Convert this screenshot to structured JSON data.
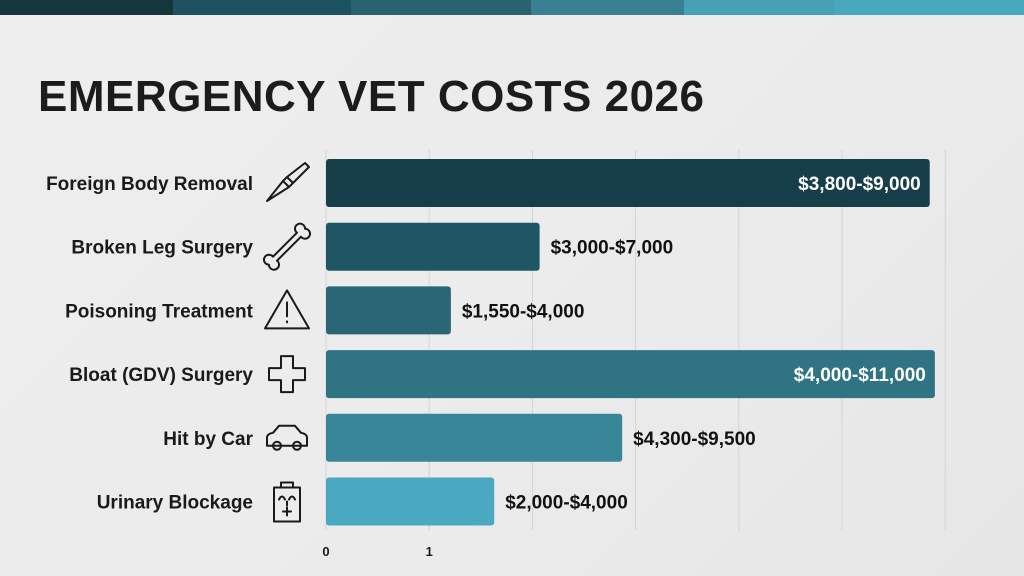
{
  "header_strip_colors": [
    "#14363d",
    "#1d5360",
    "#28636f",
    "#3a8093",
    "#48a0b7",
    "#4aa7c0"
  ],
  "chart_data": {
    "type": "bar",
    "orientation": "horizontal",
    "title": "EMERGENCY VET COSTS 2026",
    "xlabel": "",
    "ylabel": "",
    "xlim": [
      0,
      6
    ],
    "x_tick_labels": [
      "0",
      "1"
    ],
    "grid": "vertical",
    "categories": [
      "Foreign Body Removal",
      "Broken Leg Surgery",
      "Poisoning Treatment",
      "Bloat (GDV) Surgery",
      "Hit by Car",
      "Urinary Blockage"
    ],
    "icons": [
      "scalpel-icon",
      "bone-icon",
      "warning-icon",
      "medical-cross-icon",
      "car-icon",
      "clipboard-icon"
    ],
    "values": [
      5.85,
      2.07,
      1.21,
      5.9,
      2.87,
      1.63
    ],
    "data_labels": [
      "$3,800-$9,000",
      "$3,000-$7,000",
      "$1,550-$4,000",
      "$4,000-$11,000",
      "$4,300-$9,500",
      "$2,000-$4,000"
    ],
    "label_inside": [
      true,
      false,
      false,
      true,
      false,
      false
    ],
    "colors": [
      "#173f4a",
      "#1f5663",
      "#2a6675",
      "#307383",
      "#378798",
      "#4aa8c0"
    ]
  }
}
